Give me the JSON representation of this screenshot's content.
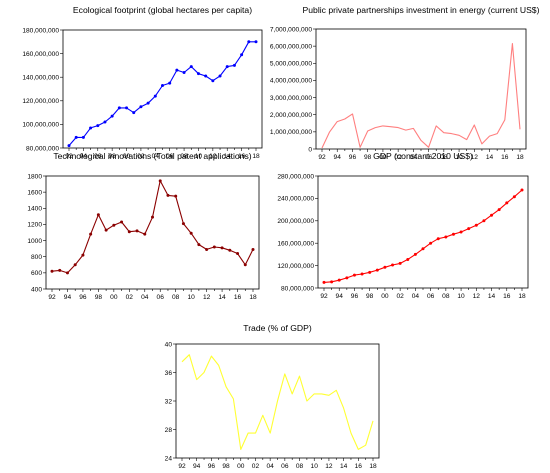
{
  "chart_data": [
    {
      "type": "line",
      "title": "Ecological footprint (global hectares per capita)",
      "color": "#0000ff",
      "marker": "dot",
      "x": [
        1992,
        1993,
        1994,
        1995,
        1996,
        1997,
        1998,
        1999,
        2000,
        2001,
        2002,
        2003,
        2004,
        2005,
        2006,
        2007,
        2008,
        2009,
        2010,
        2011,
        2012,
        2013,
        2014,
        2015,
        2016,
        2017,
        2018
      ],
      "y": [
        82000000,
        89000000,
        89000000,
        97000000,
        99000000,
        102000000,
        107000000,
        114000000,
        114000000,
        110000000,
        115000000,
        118000000,
        124000000,
        133000000,
        135000000,
        146000000,
        144000000,
        149000000,
        143000000,
        141000000,
        137000000,
        141000000,
        149000000,
        150000000,
        159000000,
        170000000,
        170000000
      ],
      "ylim": [
        80000000,
        180000000
      ],
      "yticks": [
        80000000,
        100000000,
        120000000,
        140000000,
        160000000,
        180000000
      ],
      "ytick_labels": [
        "80,000,000",
        "100,000,000",
        "120,000,000",
        "140,000,000",
        "160,000,000",
        "180,000,000"
      ],
      "xtick_labels": [
        "92",
        "94",
        "96",
        "98",
        "00",
        "02",
        "04",
        "06",
        "08",
        "10",
        "12",
        "14",
        "16",
        "18"
      ]
    },
    {
      "type": "line",
      "title": "Public private partnerships investment in energy (current US$)",
      "color": "#ff7f7f",
      "marker": "none",
      "x": [
        1992,
        1993,
        1994,
        1995,
        1996,
        1997,
        1998,
        1999,
        2000,
        2001,
        2002,
        2003,
        2004,
        2005,
        2006,
        2007,
        2008,
        2009,
        2010,
        2011,
        2012,
        2013,
        2014,
        2015,
        2016,
        2017,
        2018
      ],
      "y": [
        60000000,
        1000000000,
        1600000000,
        1750000000,
        2050000000,
        100000000,
        1050000000,
        1250000000,
        1350000000,
        1300000000,
        1250000000,
        1100000000,
        1200000000,
        500000000,
        100000000,
        1350000000,
        950000000,
        900000000,
        800000000,
        550000000,
        1400000000,
        300000000,
        750000000,
        900000000,
        1700000000,
        6150000000,
        1150000000
      ],
      "ylim": [
        0,
        7000000000
      ],
      "yticks": [
        0,
        1000000000,
        2000000000,
        3000000000,
        4000000000,
        5000000000,
        6000000000,
        7000000000
      ],
      "ytick_labels": [
        "0",
        "1,000,000,000",
        "2,000,000,000",
        "3,000,000,000",
        "4,000,000,000",
        "5,000,000,000",
        "6,000,000,000",
        "7,000,000,000"
      ],
      "xtick_labels": [
        "92",
        "94",
        "96",
        "98",
        "00",
        "02",
        "04",
        "06",
        "08",
        "10",
        "12",
        "14",
        "16",
        "18"
      ]
    },
    {
      "type": "line",
      "title": "Technological innovations (Total patent applications)",
      "color": "#8b0000",
      "marker": "dot",
      "x": [
        1992,
        1993,
        1994,
        1995,
        1996,
        1997,
        1998,
        1999,
        2000,
        2001,
        2002,
        2003,
        2004,
        2005,
        2006,
        2007,
        2008,
        2009,
        2010,
        2011,
        2012,
        2013,
        2014,
        2015,
        2016,
        2017,
        2018
      ],
      "y": [
        620,
        630,
        600,
        700,
        820,
        1080,
        1320,
        1130,
        1190,
        1230,
        1110,
        1120,
        1080,
        1290,
        1740,
        1560,
        1550,
        1210,
        1090,
        950,
        890,
        920,
        910,
        880,
        840,
        700,
        890
      ],
      "ylim": [
        400,
        1800
      ],
      "yticks": [
        400,
        600,
        800,
        1000,
        1200,
        1400,
        1600,
        1800
      ],
      "ytick_labels": [
        "400",
        "600",
        "800",
        "1000",
        "1200",
        "1400",
        "1600",
        "1800"
      ],
      "xtick_labels": [
        "92",
        "94",
        "96",
        "98",
        "00",
        "02",
        "04",
        "06",
        "08",
        "10",
        "12",
        "14",
        "16",
        "18"
      ]
    },
    {
      "type": "line",
      "title": "GDP (constant 2010 US$)",
      "color": "#ff0000",
      "marker": "dot",
      "x": [
        1992,
        1993,
        1994,
        1995,
        1996,
        1997,
        1998,
        1999,
        2000,
        2001,
        2002,
        2003,
        2004,
        2005,
        2006,
        2007,
        2008,
        2009,
        2010,
        2011,
        2012,
        2013,
        2014,
        2015,
        2016,
        2017,
        2018
      ],
      "y": [
        90000000,
        91000000,
        94000000,
        98000000,
        103000000,
        105000000,
        108000000,
        112000000,
        117000000,
        121000000,
        124000000,
        131000000,
        140000000,
        150000000,
        160000000,
        168000000,
        171000000,
        176000000,
        180000000,
        186000000,
        192000000,
        200000000,
        210000000,
        220000000,
        232000000,
        243000000,
        255000000
      ],
      "ylim": [
        80000000,
        280000000
      ],
      "yticks": [
        80000000,
        120000000,
        160000000,
        200000000,
        240000000,
        280000000
      ],
      "ytick_labels": [
        "80,000,000",
        "120,000,000",
        "160,000,000",
        "200,000,000",
        "240,000,000",
        "280,000,000"
      ],
      "xtick_labels": [
        "92",
        "94",
        "96",
        "98",
        "00",
        "02",
        "04",
        "06",
        "08",
        "10",
        "12",
        "14",
        "16",
        "18"
      ]
    },
    {
      "type": "line",
      "title": "Trade (% of GDP)",
      "color": "#ffff33",
      "marker": "none",
      "x": [
        1992,
        1993,
        1994,
        1995,
        1996,
        1997,
        1998,
        1999,
        2000,
        2001,
        2002,
        2003,
        2004,
        2005,
        2006,
        2007,
        2008,
        2009,
        2010,
        2011,
        2012,
        2013,
        2014,
        2015,
        2016,
        2017,
        2018
      ],
      "y": [
        37.5,
        38.5,
        35,
        36,
        38.3,
        37,
        34,
        32.3,
        25.2,
        27.5,
        27.5,
        30,
        27.5,
        32,
        35.8,
        33,
        35.5,
        32,
        33,
        33,
        32.8,
        33.5,
        31,
        27.5,
        25.2,
        25.8,
        29.2
      ],
      "ylim": [
        24,
        40
      ],
      "yticks": [
        24,
        28,
        32,
        36,
        40
      ],
      "ytick_labels": [
        "24",
        "28",
        "32",
        "36",
        "40"
      ],
      "xtick_labels": [
        "92",
        "94",
        "96",
        "98",
        "00",
        "02",
        "04",
        "06",
        "08",
        "10",
        "12",
        "14",
        "16",
        "18"
      ]
    }
  ]
}
